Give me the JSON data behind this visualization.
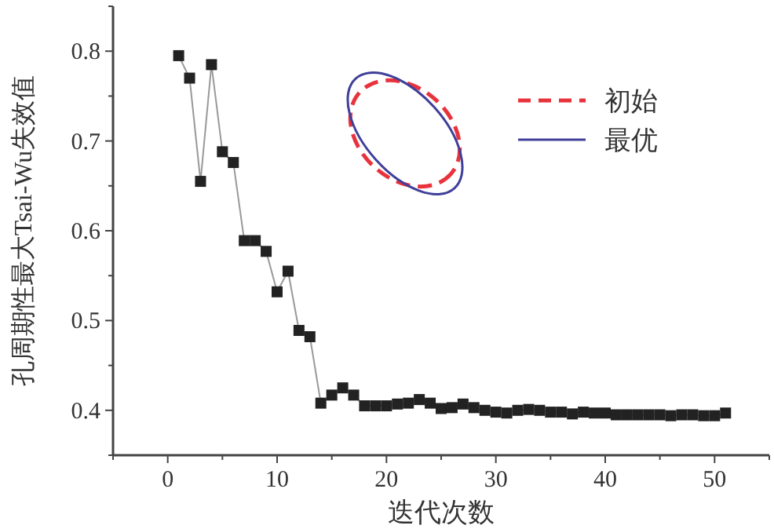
{
  "chart_data": {
    "type": "line",
    "xlabel": "迭代次数",
    "ylabel": "孔周期性最大Tsai-Wu失效值",
    "x": [
      1,
      2,
      3,
      4,
      5,
      6,
      7,
      8,
      9,
      10,
      11,
      12,
      13,
      14,
      15,
      16,
      17,
      18,
      19,
      20,
      21,
      22,
      23,
      24,
      25,
      26,
      27,
      28,
      29,
      30,
      31,
      32,
      33,
      34,
      35,
      36,
      37,
      38,
      39,
      40,
      41,
      42,
      43,
      44,
      45,
      46,
      47,
      48,
      49,
      50,
      51
    ],
    "series": [
      {
        "color": "#222222",
        "values": [
          0.795,
          0.77,
          0.655,
          0.785,
          0.688,
          0.676,
          0.589,
          0.589,
          0.577,
          0.532,
          0.555,
          0.489,
          0.482,
          0.408,
          0.417,
          0.425,
          0.417,
          0.405,
          0.405,
          0.405,
          0.407,
          0.408,
          0.412,
          0.408,
          0.402,
          0.403,
          0.407,
          0.403,
          0.4,
          0.398,
          0.397,
          0.4,
          0.401,
          0.4,
          0.398,
          0.398,
          0.396,
          0.398,
          0.397,
          0.397,
          0.395,
          0.395,
          0.395,
          0.395,
          0.395,
          0.394,
          0.395,
          0.395,
          0.394,
          0.394,
          0.397
        ]
      }
    ],
    "marker": "square",
    "line_style": "solid",
    "xlim": [
      -5,
      55
    ],
    "xticks": [
      {
        "value": -5,
        "label": null
      },
      0,
      {
        "value": 5,
        "label": null
      },
      10,
      {
        "value": 15,
        "label": null
      },
      20,
      {
        "value": 25,
        "label": null
      },
      30,
      {
        "value": 35,
        "label": null
      },
      40,
      {
        "value": 45,
        "label": null
      },
      50,
      {
        "value": 55,
        "label": null
      }
    ],
    "ylim": [
      0.35,
      0.85
    ],
    "yticks": [
      {
        "value": 0.35,
        "label": null
      },
      0.4,
      {
        "value": 0.45,
        "label": null
      },
      0.5,
      {
        "value": 0.55,
        "label": null
      },
      0.6,
      {
        "value": 0.65,
        "label": null
      },
      0.7,
      {
        "value": 0.75,
        "label": null
      },
      0.8,
      {
        "value": 0.85,
        "label": null
      }
    ],
    "grid": false,
    "annotations": [
      "初始",
      "最优"
    ]
  }
}
